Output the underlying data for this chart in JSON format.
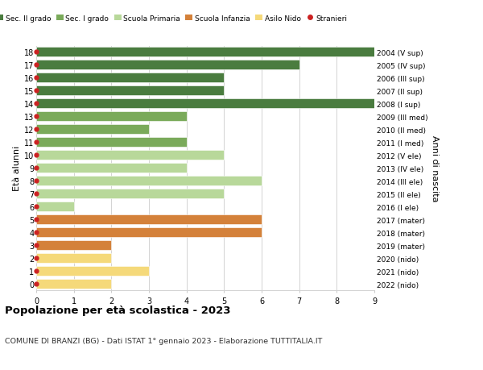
{
  "ages": [
    18,
    17,
    16,
    15,
    14,
    13,
    12,
    11,
    10,
    9,
    8,
    7,
    6,
    5,
    4,
    3,
    2,
    1,
    0
  ],
  "labels_right": [
    "2004 (V sup)",
    "2005 (IV sup)",
    "2006 (III sup)",
    "2007 (II sup)",
    "2008 (I sup)",
    "2009 (III med)",
    "2010 (II med)",
    "2011 (I med)",
    "2012 (V ele)",
    "2013 (IV ele)",
    "2014 (III ele)",
    "2015 (II ele)",
    "2016 (I ele)",
    "2017 (mater)",
    "2018 (mater)",
    "2019 (mater)",
    "2020 (nido)",
    "2021 (nido)",
    "2022 (nido)"
  ],
  "bar_values": [
    9,
    7,
    5,
    5,
    9,
    4,
    3,
    4,
    5,
    4,
    6,
    5,
    1,
    6,
    6,
    2,
    2,
    3,
    2
  ],
  "bar_colors": [
    "#4a7c3f",
    "#4a7c3f",
    "#4a7c3f",
    "#4a7c3f",
    "#4a7c3f",
    "#7aaa5a",
    "#7aaa5a",
    "#7aaa5a",
    "#b8d89a",
    "#b8d89a",
    "#b8d89a",
    "#b8d89a",
    "#b8d89a",
    "#d4813a",
    "#d4813a",
    "#d4813a",
    "#f5d97a",
    "#f5d97a",
    "#f5d97a"
  ],
  "xlim": [
    0,
    9
  ],
  "ylabel": "Età alunni",
  "ylabel_right": "Anni di nascita",
  "title": "Popolazione per età scolastica - 2023",
  "subtitle": "COMUNE DI BRANZI (BG) - Dati ISTAT 1° gennaio 2023 - Elaborazione TUTTITALIA.IT",
  "legend_labels": [
    "Sec. II grado",
    "Sec. I grado",
    "Scuola Primaria",
    "Scuola Infanzia",
    "Asilo Nido",
    "Stranieri"
  ],
  "legend_colors": [
    "#4a7c3f",
    "#7aaa5a",
    "#b8d89a",
    "#d4813a",
    "#f5d97a",
    "#cc2222"
  ],
  "grid_color": "#cccccc",
  "bar_height": 0.75,
  "xticks": [
    0,
    1,
    2,
    3,
    4,
    5,
    6,
    7,
    8,
    9
  ],
  "yticks": [
    0,
    1,
    2,
    3,
    4,
    5,
    6,
    7,
    8,
    9,
    10,
    11,
    12,
    13,
    14,
    15,
    16,
    17,
    18
  ]
}
